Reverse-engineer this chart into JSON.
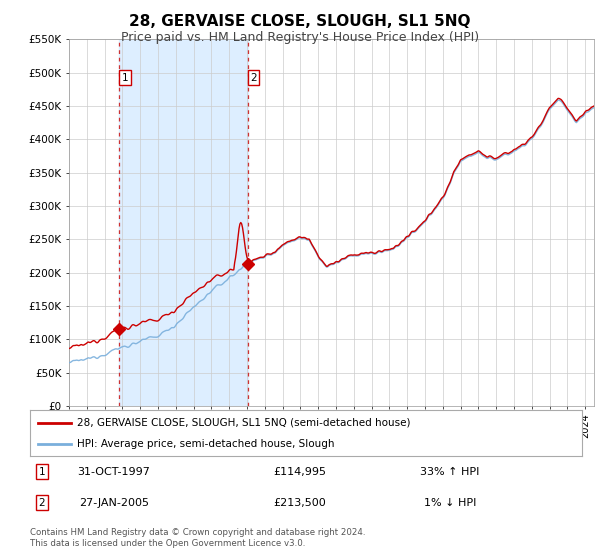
{
  "title": "28, GERVAISE CLOSE, SLOUGH, SL1 5NQ",
  "subtitle": "Price paid vs. HM Land Registry's House Price Index (HPI)",
  "ylim": [
    0,
    550000
  ],
  "yticks": [
    0,
    50000,
    100000,
    150000,
    200000,
    250000,
    300000,
    350000,
    400000,
    450000,
    500000,
    550000
  ],
  "ytick_labels": [
    "£0",
    "£50K",
    "£100K",
    "£150K",
    "£200K",
    "£250K",
    "£300K",
    "£350K",
    "£400K",
    "£450K",
    "£500K",
    "£550K"
  ],
  "xlim_start": 1995.0,
  "xlim_end": 2024.5,
  "sale1_date": 1997.83,
  "sale1_price": 114995,
  "sale2_date": 2005.07,
  "sale2_price": 213500,
  "sale1_date_str": "31-OCT-1997",
  "sale1_price_str": "£114,995",
  "sale1_hpi_str": "33% ↑ HPI",
  "sale2_date_str": "27-JAN-2005",
  "sale2_price_str": "£213,500",
  "sale2_hpi_str": "1% ↓ HPI",
  "line1_color": "#cc0000",
  "line2_color": "#7aafdc",
  "shading_color": "#ddeeff",
  "vline_color": "#cc3333",
  "bg_color": "#ffffff",
  "grid_color": "#cccccc",
  "title_fontsize": 11,
  "subtitle_fontsize": 9,
  "legend_label1": "28, GERVAISE CLOSE, SLOUGH, SL1 5NQ (semi-detached house)",
  "legend_label2": "HPI: Average price, semi-detached house, Slough",
  "footer_text": "Contains HM Land Registry data © Crown copyright and database right 2024.\nThis data is licensed under the Open Government Licence v3.0."
}
